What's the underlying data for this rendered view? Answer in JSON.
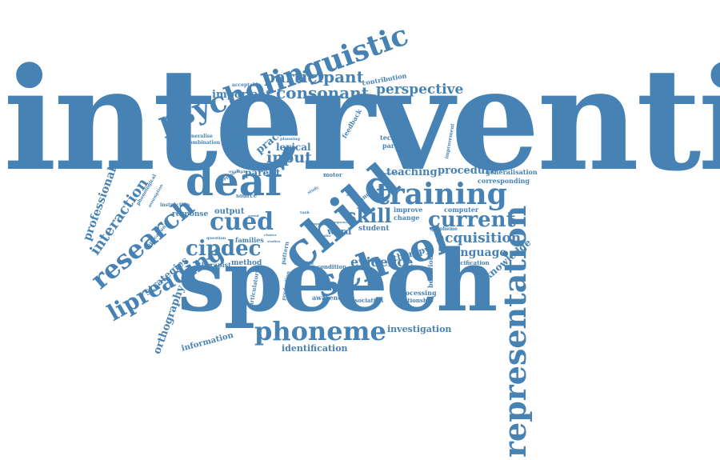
{
  "color": "#4682b4",
  "words": {
    "intervention": "intervention",
    "speech": "speech",
    "child": "child",
    "school": "school",
    "deaf": "deaf",
    "training": "training",
    "representation": "representation",
    "psycholinguistic": "psycholinguistic",
    "phoneme": "phoneme",
    "research": "research",
    "cued": "cued",
    "cipdec": "cipdec",
    "lipreading": "lipreading",
    "current": "current",
    "skill": "skill",
    "participant": "participant",
    "consonant": "consonant",
    "perspective": "perspective",
    "acquisition": "acquisition",
    "input": "input",
    "evidence": "evidence",
    "interaction": "interaction",
    "professional": "professional",
    "important": "important",
    "language": "language",
    "knowledge": "knowledge",
    "orthography": "orthography",
    "strategies": "strategies",
    "teaching": "teaching",
    "procedure": "procedure",
    "practice": "practice",
    "lexical": "lexical",
    "parent": "parent",
    "word": "word",
    "output": "output",
    "response": "response",
    "therapy": "therapy",
    "student": "student",
    "families": "families",
    "method": "method",
    "identification": "identification",
    "investigation": "investigation",
    "information": "information",
    "therapist": "therapist",
    "awareness": "awareness",
    "association": "association",
    "processing": "processing",
    "relationship": "relationship",
    "behaviour": "behaviour",
    "specification": "specification",
    "computer": "computer",
    "improve": "improve",
    "change": "change",
    "grapheme": "grapheme",
    "generalisation": "generalisation",
    "corresponding": "corresponding",
    "technique": "technique",
    "particular": "particular",
    "improvement": "improvement",
    "contribution": "contribution",
    "feedback": "feedback",
    "acceptable": "acceptable",
    "expectation": "expectation",
    "generalise": "generalise",
    "combination": "combination",
    "segment": "segment",
    "source": "source",
    "instruction": "instruction",
    "implication": "implication",
    "question": "question",
    "approach": "approach",
    "phonological": "phonological",
    "assumption": "assumption",
    "articulatory": "articulatory",
    "production": "production",
    "condition": "condition",
    "profiling": "profiling",
    "pattern": "pattern",
    "range": "range",
    "motor": "motor",
    "explicit": "explicit",
    "planning": "planning",
    "study": "study",
    "task": "task",
    "detail": "detail",
    "example": "example",
    "access": "access",
    "measured": "measured",
    "studies": "studies",
    "cluster": "cluster",
    "sound": "sound",
    "similar": "similar",
    "support": "support",
    "frequency": "frequency"
  }
}
